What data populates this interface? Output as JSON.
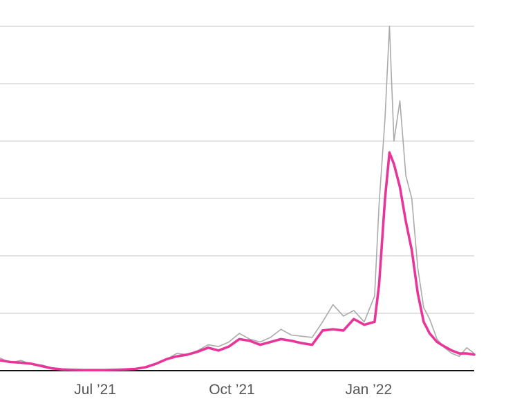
{
  "chart_data": {
    "type": "line",
    "title": "",
    "xlabel": "",
    "ylabel": "",
    "x_range": [
      "2021-04-28",
      "2022-03-13"
    ],
    "ylim": [
      0,
      6
    ],
    "y_grid_values": [
      1,
      2,
      3,
      4,
      5,
      6
    ],
    "y_tick_labels_visible": false,
    "x_ticks": [
      {
        "date": "2021-07-01",
        "label": "Jul ’21"
      },
      {
        "date": "2021-10-01",
        "label": "Oct ’21"
      },
      {
        "date": "2022-01-01",
        "label": "Jan ’22"
      }
    ],
    "grid": true,
    "legend": "none",
    "colors": {
      "daily": "#aaaaaa",
      "average": "#e8359a",
      "grid": "#dcdcdc",
      "axis": "#111111"
    },
    "series": [
      {
        "role": "daily",
        "color": "#aaaaaa",
        "points": [
          [
            "2021-04-28",
            0.22
          ],
          [
            "2021-05-05",
            0.14
          ],
          [
            "2021-05-12",
            0.18
          ],
          [
            "2021-05-19",
            0.11
          ],
          [
            "2021-05-26",
            0.1
          ],
          [
            "2021-06-02",
            0.05
          ],
          [
            "2021-06-09",
            0.03
          ],
          [
            "2021-06-16",
            0.02
          ],
          [
            "2021-06-23",
            0.01
          ],
          [
            "2021-06-30",
            0.01
          ],
          [
            "2021-07-07",
            0.02
          ],
          [
            "2021-07-14",
            0.01
          ],
          [
            "2021-07-21",
            0.02
          ],
          [
            "2021-07-28",
            0.03
          ],
          [
            "2021-08-04",
            0.06
          ],
          [
            "2021-08-11",
            0.12
          ],
          [
            "2021-08-18",
            0.2
          ],
          [
            "2021-08-25",
            0.3
          ],
          [
            "2021-09-01",
            0.28
          ],
          [
            "2021-09-08",
            0.35
          ],
          [
            "2021-09-15",
            0.45
          ],
          [
            "2021-09-22",
            0.42
          ],
          [
            "2021-09-29",
            0.5
          ],
          [
            "2021-10-06",
            0.65
          ],
          [
            "2021-10-13",
            0.55
          ],
          [
            "2021-10-20",
            0.5
          ],
          [
            "2021-10-27",
            0.58
          ],
          [
            "2021-11-03",
            0.72
          ],
          [
            "2021-11-10",
            0.62
          ],
          [
            "2021-11-17",
            0.6
          ],
          [
            "2021-11-24",
            0.58
          ],
          [
            "2021-12-01",
            0.85
          ],
          [
            "2021-12-08",
            1.15
          ],
          [
            "2021-12-15",
            0.95
          ],
          [
            "2021-12-22",
            1.05
          ],
          [
            "2021-12-29",
            0.85
          ],
          [
            "2022-01-05",
            1.3
          ],
          [
            "2022-01-08",
            2.9
          ],
          [
            "2022-01-12",
            4.4
          ],
          [
            "2022-01-15",
            6.0
          ],
          [
            "2022-01-18",
            4.0
          ],
          [
            "2022-01-22",
            4.7
          ],
          [
            "2022-01-26",
            3.4
          ],
          [
            "2022-01-30",
            3.0
          ],
          [
            "2022-02-03",
            1.8
          ],
          [
            "2022-02-07",
            1.1
          ],
          [
            "2022-02-11",
            0.9
          ],
          [
            "2022-02-16",
            0.55
          ],
          [
            "2022-02-21",
            0.4
          ],
          [
            "2022-02-26",
            0.3
          ],
          [
            "2022-03-03",
            0.25
          ],
          [
            "2022-03-08",
            0.4
          ],
          [
            "2022-03-13",
            0.3
          ]
        ]
      },
      {
        "role": "average",
        "color": "#e8359a",
        "points": [
          [
            "2021-04-28",
            0.18
          ],
          [
            "2021-05-05",
            0.15
          ],
          [
            "2021-05-12",
            0.14
          ],
          [
            "2021-05-19",
            0.12
          ],
          [
            "2021-05-26",
            0.08
          ],
          [
            "2021-06-02",
            0.04
          ],
          [
            "2021-06-09",
            0.02
          ],
          [
            "2021-06-16",
            0.015
          ],
          [
            "2021-06-23",
            0.01
          ],
          [
            "2021-06-30",
            0.01
          ],
          [
            "2021-07-07",
            0.01
          ],
          [
            "2021-07-14",
            0.015
          ],
          [
            "2021-07-21",
            0.02
          ],
          [
            "2021-07-28",
            0.03
          ],
          [
            "2021-08-04",
            0.06
          ],
          [
            "2021-08-11",
            0.12
          ],
          [
            "2021-08-18",
            0.2
          ],
          [
            "2021-08-25",
            0.25
          ],
          [
            "2021-09-01",
            0.28
          ],
          [
            "2021-09-08",
            0.33
          ],
          [
            "2021-09-15",
            0.4
          ],
          [
            "2021-09-22",
            0.35
          ],
          [
            "2021-09-29",
            0.42
          ],
          [
            "2021-10-06",
            0.55
          ],
          [
            "2021-10-13",
            0.52
          ],
          [
            "2021-10-20",
            0.45
          ],
          [
            "2021-10-27",
            0.5
          ],
          [
            "2021-11-03",
            0.55
          ],
          [
            "2021-11-10",
            0.52
          ],
          [
            "2021-11-17",
            0.48
          ],
          [
            "2021-11-24",
            0.45
          ],
          [
            "2021-12-01",
            0.7
          ],
          [
            "2021-12-08",
            0.72
          ],
          [
            "2021-12-15",
            0.7
          ],
          [
            "2021-12-22",
            0.9
          ],
          [
            "2021-12-29",
            0.8
          ],
          [
            "2022-01-05",
            0.85
          ],
          [
            "2022-01-08",
            1.5
          ],
          [
            "2022-01-12",
            3.0
          ],
          [
            "2022-01-15",
            3.8
          ],
          [
            "2022-01-18",
            3.6
          ],
          [
            "2022-01-22",
            3.2
          ],
          [
            "2022-01-26",
            2.6
          ],
          [
            "2022-01-30",
            2.1
          ],
          [
            "2022-02-03",
            1.35
          ],
          [
            "2022-02-07",
            0.85
          ],
          [
            "2022-02-11",
            0.65
          ],
          [
            "2022-02-16",
            0.5
          ],
          [
            "2022-02-21",
            0.42
          ],
          [
            "2022-02-26",
            0.35
          ],
          [
            "2022-03-03",
            0.3
          ],
          [
            "2022-03-08",
            0.3
          ],
          [
            "2022-03-13",
            0.28
          ]
        ]
      }
    ]
  }
}
